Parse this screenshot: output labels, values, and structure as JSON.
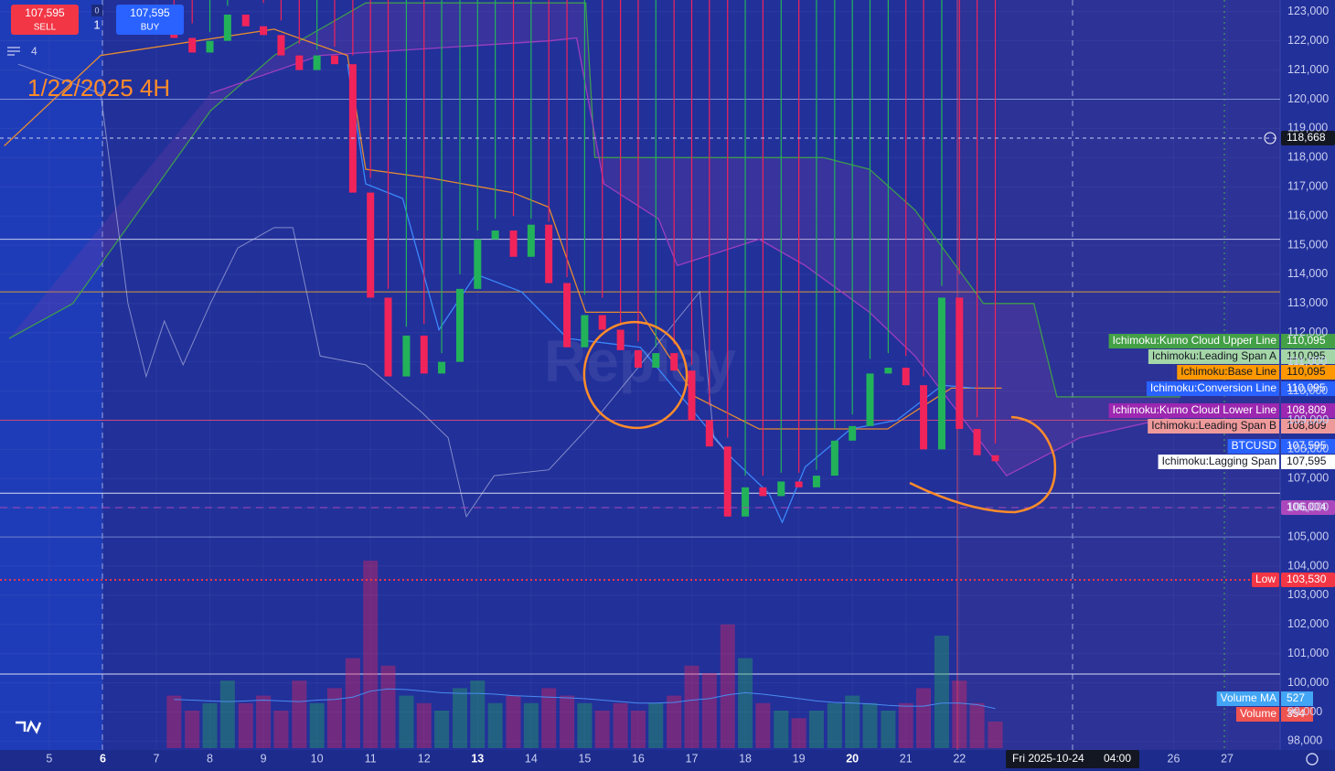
{
  "trade_panel": {
    "sell_price": "107,595",
    "sell": "SELL",
    "buy_price": "107,595",
    "buy": "BUY",
    "spread": "0",
    "quantity": "1",
    "layers": "4"
  },
  "chart_data": {
    "type": "candlestick",
    "title": "1/22/2025 4H",
    "watermark": "Replay",
    "up_color": "#22b25a",
    "down_color": "#f0245a",
    "x": [
      7.33,
      7.67,
      8,
      8.33,
      8.67,
      9,
      9.33,
      9.67,
      10,
      10.33,
      10.67,
      11,
      11.33,
      11.67,
      12,
      12.33,
      12.67,
      13,
      13.33,
      13.67,
      14,
      14.33,
      14.67,
      15,
      15.33,
      15.67,
      16,
      16.33,
      16.67,
      17,
      17.33,
      17.67,
      18,
      18.33,
      18.67,
      19,
      19.33,
      19.67,
      20,
      20.33,
      20.67,
      21,
      21.33,
      21.67,
      22,
      22.33,
      22.67
    ],
    "open": [
      122400,
      122100,
      121600,
      122000,
      122900,
      122500,
      122200,
      121500,
      121000,
      121500,
      121200,
      116800,
      113200,
      110500,
      111900,
      110600,
      111000,
      113500,
      115200,
      115500,
      114600,
      115700,
      113700,
      111500,
      112600,
      112100,
      111400,
      110800,
      111300,
      110700,
      109000,
      108100,
      105700,
      106700,
      106400,
      106900,
      106700,
      107100,
      108300,
      108800,
      110600,
      110800,
      110200,
      108000,
      113200,
      108700,
      107800
    ],
    "high": [
      123000,
      122600,
      122300,
      123200,
      123400,
      123300,
      122700,
      121900,
      121700,
      121800,
      121500,
      117300,
      113500,
      112200,
      112300,
      111300,
      114000,
      115500,
      115900,
      116000,
      115900,
      115800,
      113900,
      113300,
      113200,
      112300,
      111700,
      111500,
      111600,
      110900,
      109500,
      108400,
      107100,
      107100,
      107200,
      107200,
      107300,
      108700,
      109200,
      111100,
      111300,
      111200,
      110500,
      113600,
      114000,
      109100,
      108200
    ],
    "low": {
      "name": "Low",
      "value": 103530,
      "label": "103,530",
      "color": "#f23645"
    },
    "close": [
      122100,
      121600,
      122000,
      122900,
      122500,
      122200,
      121500,
      121000,
      121500,
      121200,
      116800,
      113200,
      110500,
      111900,
      110600,
      111000,
      113500,
      115200,
      115500,
      114600,
      115700,
      113700,
      111500,
      112600,
      112100,
      111400,
      110800,
      111300,
      110700,
      109000,
      108100,
      105700,
      106700,
      106400,
      106900,
      106700,
      107100,
      108300,
      108800,
      110600,
      110800,
      110200,
      108000,
      113200,
      108700,
      107800,
      107595
    ],
    "volume": [
      700,
      500,
      600,
      900,
      600,
      700,
      500,
      900,
      600,
      800,
      1200,
      2500,
      1100,
      700,
      600,
      500,
      800,
      900,
      600,
      700,
      600,
      800,
      700,
      600,
      500,
      600,
      500,
      600,
      700,
      1100,
      1000,
      1650,
      1200,
      600,
      500,
      400,
      500,
      600,
      700,
      600,
      500,
      600,
      800,
      1500,
      900,
      600,
      354
    ],
    "volume_ma": [
      650,
      640,
      630,
      620,
      630,
      640,
      630,
      620,
      640,
      650,
      680,
      760,
      790,
      780,
      760,
      740,
      730,
      730,
      720,
      700,
      690,
      680,
      670,
      660,
      640,
      620,
      600,
      600,
      610,
      640,
      660,
      710,
      740,
      720,
      690,
      660,
      630,
      610,
      600,
      590,
      570,
      560,
      560,
      600,
      600,
      580,
      527
    ],
    "volume_ma_color": "#4a8cf0",
    "xlim": [
      4.08,
      27.99
    ],
    "xticks": [
      5,
      6,
      7,
      8,
      9,
      10,
      11,
      12,
      13,
      14,
      15,
      16,
      17,
      18,
      19,
      20,
      21,
      22,
      26,
      27
    ],
    "bold_xticks": [
      6,
      13,
      20
    ],
    "ylim": [
      97700,
      123400
    ],
    "yticks": [
      {
        "value": 98000,
        "label": "98,000"
      },
      {
        "value": 99000,
        "label": "99,000"
      },
      {
        "value": 100000,
        "label": "100,000"
      },
      {
        "value": 101000,
        "label": "101,000"
      },
      {
        "value": 102000,
        "label": "102,000"
      },
      {
        "value": 103000,
        "label": "103,000"
      },
      {
        "value": 104000,
        "label": "104,000"
      },
      {
        "value": 105000,
        "label": "105,000"
      },
      {
        "value": 106000,
        "label": "106,000"
      },
      {
        "value": 107000,
        "label": "107,000"
      },
      {
        "value": 108000,
        "label": "108,000"
      },
      {
        "value": 109000,
        "label": "109,000"
      },
      {
        "value": 110000,
        "label": "110,000"
      },
      {
        "value": 111000,
        "label": "111,000"
      },
      {
        "value": 112000,
        "label": "112,000"
      },
      {
        "value": 113000,
        "label": "113,000"
      },
      {
        "value": 114000,
        "label": "114,000"
      },
      {
        "value": 115000,
        "label": "115,000"
      },
      {
        "value": 116000,
        "label": "116,000"
      },
      {
        "value": 117000,
        "label": "117,000"
      },
      {
        "value": 118000,
        "label": "118,000"
      },
      {
        "value": 119000,
        "label": "119,000"
      },
      {
        "value": 120000,
        "label": "120,000"
      },
      {
        "value": 121000,
        "label": "121,000"
      },
      {
        "value": 122000,
        "label": "122,000"
      },
      {
        "value": 123000,
        "label": "123,000"
      }
    ],
    "series": [
      {
        "color": "#3fa04a",
        "x": [
          4.25,
          5.44,
          8.01,
          9.2,
          10.91,
          15.02,
          15.19,
          19.46,
          20.32,
          21.17,
          22.45,
          23.39,
          23.82,
          26.13
        ],
        "values": [
          111800,
          113000,
          119600,
          121500,
          123300,
          123300,
          118000,
          118000,
          117600,
          116200,
          113000,
          113000,
          109800,
          109800
        ]
      },
      {
        "color": "#a23fc0",
        "x": [
          8.01,
          10.06,
          14.33,
          14.85,
          15.36,
          16.38,
          16.73,
          18.26,
          19.12,
          20.32,
          21.17,
          22.88,
          24.25,
          25.96
        ],
        "values": [
          120200,
          121500,
          122000,
          122100,
          117100,
          115900,
          114300,
          115200,
          114300,
          112700,
          111200,
          107100,
          108400,
          109100
        ]
      },
      {
        "color": "#f0902a",
        "x": [
          4.16,
          5.96,
          9.2,
          10.57,
          10.91,
          12.11,
          13.65,
          14.33,
          15.02,
          16.04,
          17.07,
          18.26,
          20.66,
          21.85,
          22.79
        ],
        "values": [
          118400,
          121500,
          122400,
          121500,
          117600,
          117300,
          116800,
          116300,
          112700,
          112700,
          109800,
          108700,
          108700,
          110100,
          110100
        ]
      },
      {
        "color": "#3d8cff",
        "x": [
          10.57,
          10.91,
          11.6,
          12.28,
          12.97,
          13.82,
          14.68,
          16.04,
          16.9,
          17.75,
          18.44,
          18.69,
          19.12,
          19.97,
          20.83,
          21.68,
          22.28
        ],
        "values": [
          121200,
          117100,
          116600,
          112100,
          114000,
          113400,
          111800,
          111500,
          109600,
          107700,
          106500,
          105500,
          107400,
          108700,
          109000,
          110200,
          110100
        ]
      },
      {
        "color": "#c3c8ea",
        "x": [
          4.42,
          5.96,
          6.47,
          6.81,
          7.15,
          7.5,
          8.01,
          8.52,
          9.2,
          9.55,
          10.06,
          10.91,
          11.94,
          12.45,
          12.79,
          13.31,
          14.33,
          15.19,
          16.04,
          17.15,
          17.41,
          17.75
        ],
        "values": [
          121200,
          120200,
          113000,
          110500,
          112400,
          110900,
          113000,
          114900,
          115600,
          115600,
          111200,
          110900,
          109300,
          108400,
          105700,
          107100,
          107300,
          109000,
          110900,
          113400,
          108400,
          107700
        ]
      }
    ],
    "hlines": [
      {
        "value": 120000,
        "color": "#7f90d8"
      },
      {
        "value": 115200,
        "color": "#c4cbf0"
      },
      {
        "value": 113400,
        "color": "#d49a3a"
      },
      {
        "value": 109000,
        "color": "#c84a78"
      },
      {
        "value": 106500,
        "color": "#d8dcf4"
      },
      {
        "value": 105000,
        "color": "#6f80cc"
      },
      {
        "value": 100300,
        "color": "#d8dcf4"
      }
    ],
    "price_labels": [
      {
        "name": "Ichimoku:Kumo Cloud Upper Line",
        "value": {
          "value": 110095,
          "label": "110,095"
        },
        "color": "#43a047",
        "text_color": "#ffffff"
      },
      {
        "name": "Ichimoku:Leading Span A",
        "value": {
          "value": 110095,
          "label": "110,095"
        },
        "color": "#a5d6a7",
        "text_color": "#131722"
      },
      {
        "name": "Ichimoku:Base Line",
        "value": {
          "value": 110095,
          "label": "110,095"
        },
        "color": "#ff9800",
        "text_color": "#131722"
      },
      {
        "name": "Ichimoku:Conversion Line",
        "value": {
          "value": 110095,
          "label": "110,095"
        },
        "color": "#2962ff",
        "text_color": "#ffffff"
      },
      {
        "name": "Ichimoku:Kumo Cloud Lower Line",
        "value": {
          "value": 108809,
          "label": "108,809"
        },
        "color": "#9c27b0",
        "text_color": "#ffffff"
      },
      {
        "name": "Ichimoku:Leading Span B",
        "value": {
          "value": 108809,
          "label": "108,809"
        },
        "color": "#ef9a9a",
        "text_color": "#131722"
      },
      {
        "name": "BTCUSD",
        "value": {
          "value": 107595,
          "label": "107,595"
        },
        "color": "#2962ff",
        "text_color": "#ffffff"
      },
      {
        "name": "Ichimoku:Lagging Span",
        "value": {
          "value": 107595,
          "label": "107,595"
        },
        "color": "#ffffff",
        "text_color": "#131722"
      }
    ],
    "crosshair": {
      "value": 118668,
      "label": "118,668",
      "color": "#131722"
    },
    "level": {
      "value": 106004,
      "label": "106,004",
      "color": "#ab47bc"
    },
    "volume_labels": [
      {
        "name": "Volume MA",
        "value": 527,
        "color": "#42a5f5"
      },
      {
        "name": "Volume",
        "value": 354,
        "color": "#ef5350"
      }
    ],
    "cursor_time": {
      "day": "Fri 2025-10-24",
      "time": "04:00"
    }
  }
}
